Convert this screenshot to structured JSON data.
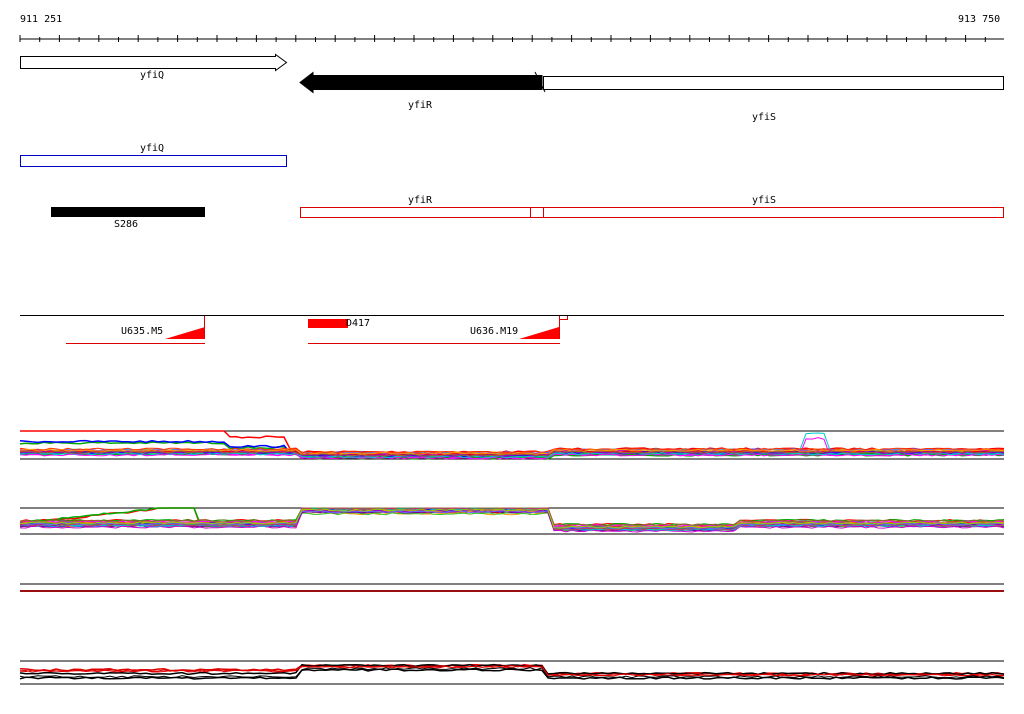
{
  "coords": {
    "start": "911 251",
    "end": "913 750"
  },
  "genes": {
    "yfiQ": "yfiQ",
    "yfiR": "yfiR",
    "yfiS": "yfiS"
  },
  "features": {
    "s286": "S286",
    "u635": "U635.M5",
    "d417": "D417",
    "u636": "U636.M19"
  },
  "colors": {
    "gene_outline": "#000000",
    "gene_fill_reverse": "#000000",
    "transcript_blue": "#0000cc",
    "transcript_red": "#dd0000",
    "feature_red": "#ff0000"
  },
  "tracks": [
    {
      "name": "signal-track-1",
      "color_set": "multicolor"
    },
    {
      "name": "signal-track-2",
      "color_set": "multicolor"
    },
    {
      "name": "signal-track-3",
      "color_set": "black-red"
    },
    {
      "name": "signal-track-4",
      "color_set": "black-red"
    }
  ]
}
